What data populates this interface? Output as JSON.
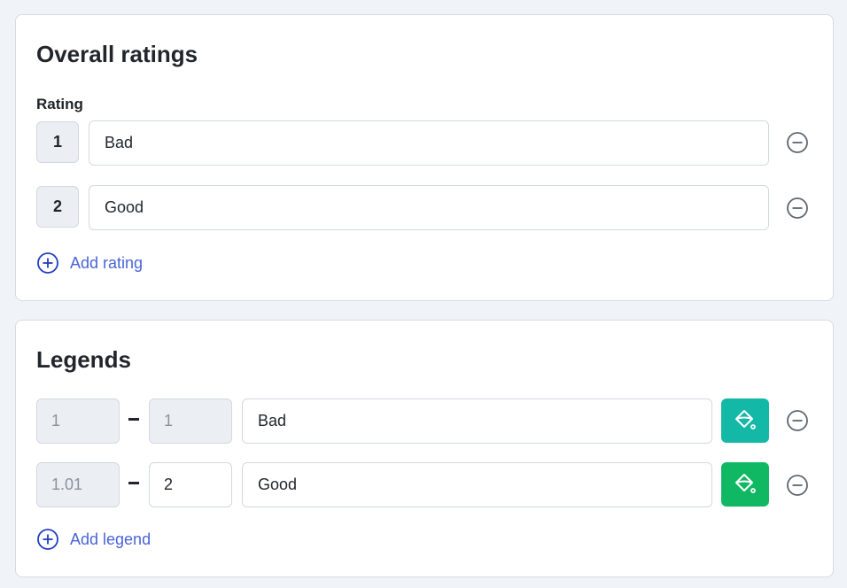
{
  "ratings_card": {
    "title": "Overall ratings",
    "label": "Rating",
    "rows": [
      {
        "number": "1",
        "text": "Bad"
      },
      {
        "number": "2",
        "text": "Good"
      }
    ],
    "add_label": "Add rating"
  },
  "legends_card": {
    "title": "Legends",
    "rows": [
      {
        "from": "1",
        "to": "1",
        "text": "Bad",
        "color": "#14b8a6",
        "from_disabled": true,
        "to_disabled": true
      },
      {
        "from": "1.01",
        "to": "2",
        "text": "Good",
        "color": "#10b864",
        "from_disabled": true,
        "to_disabled": false
      }
    ],
    "add_label": "Add legend"
  },
  "icons": {
    "remove": "minus-circle-icon",
    "add": "plus-circle-icon",
    "color": "paint-bucket-icon"
  }
}
